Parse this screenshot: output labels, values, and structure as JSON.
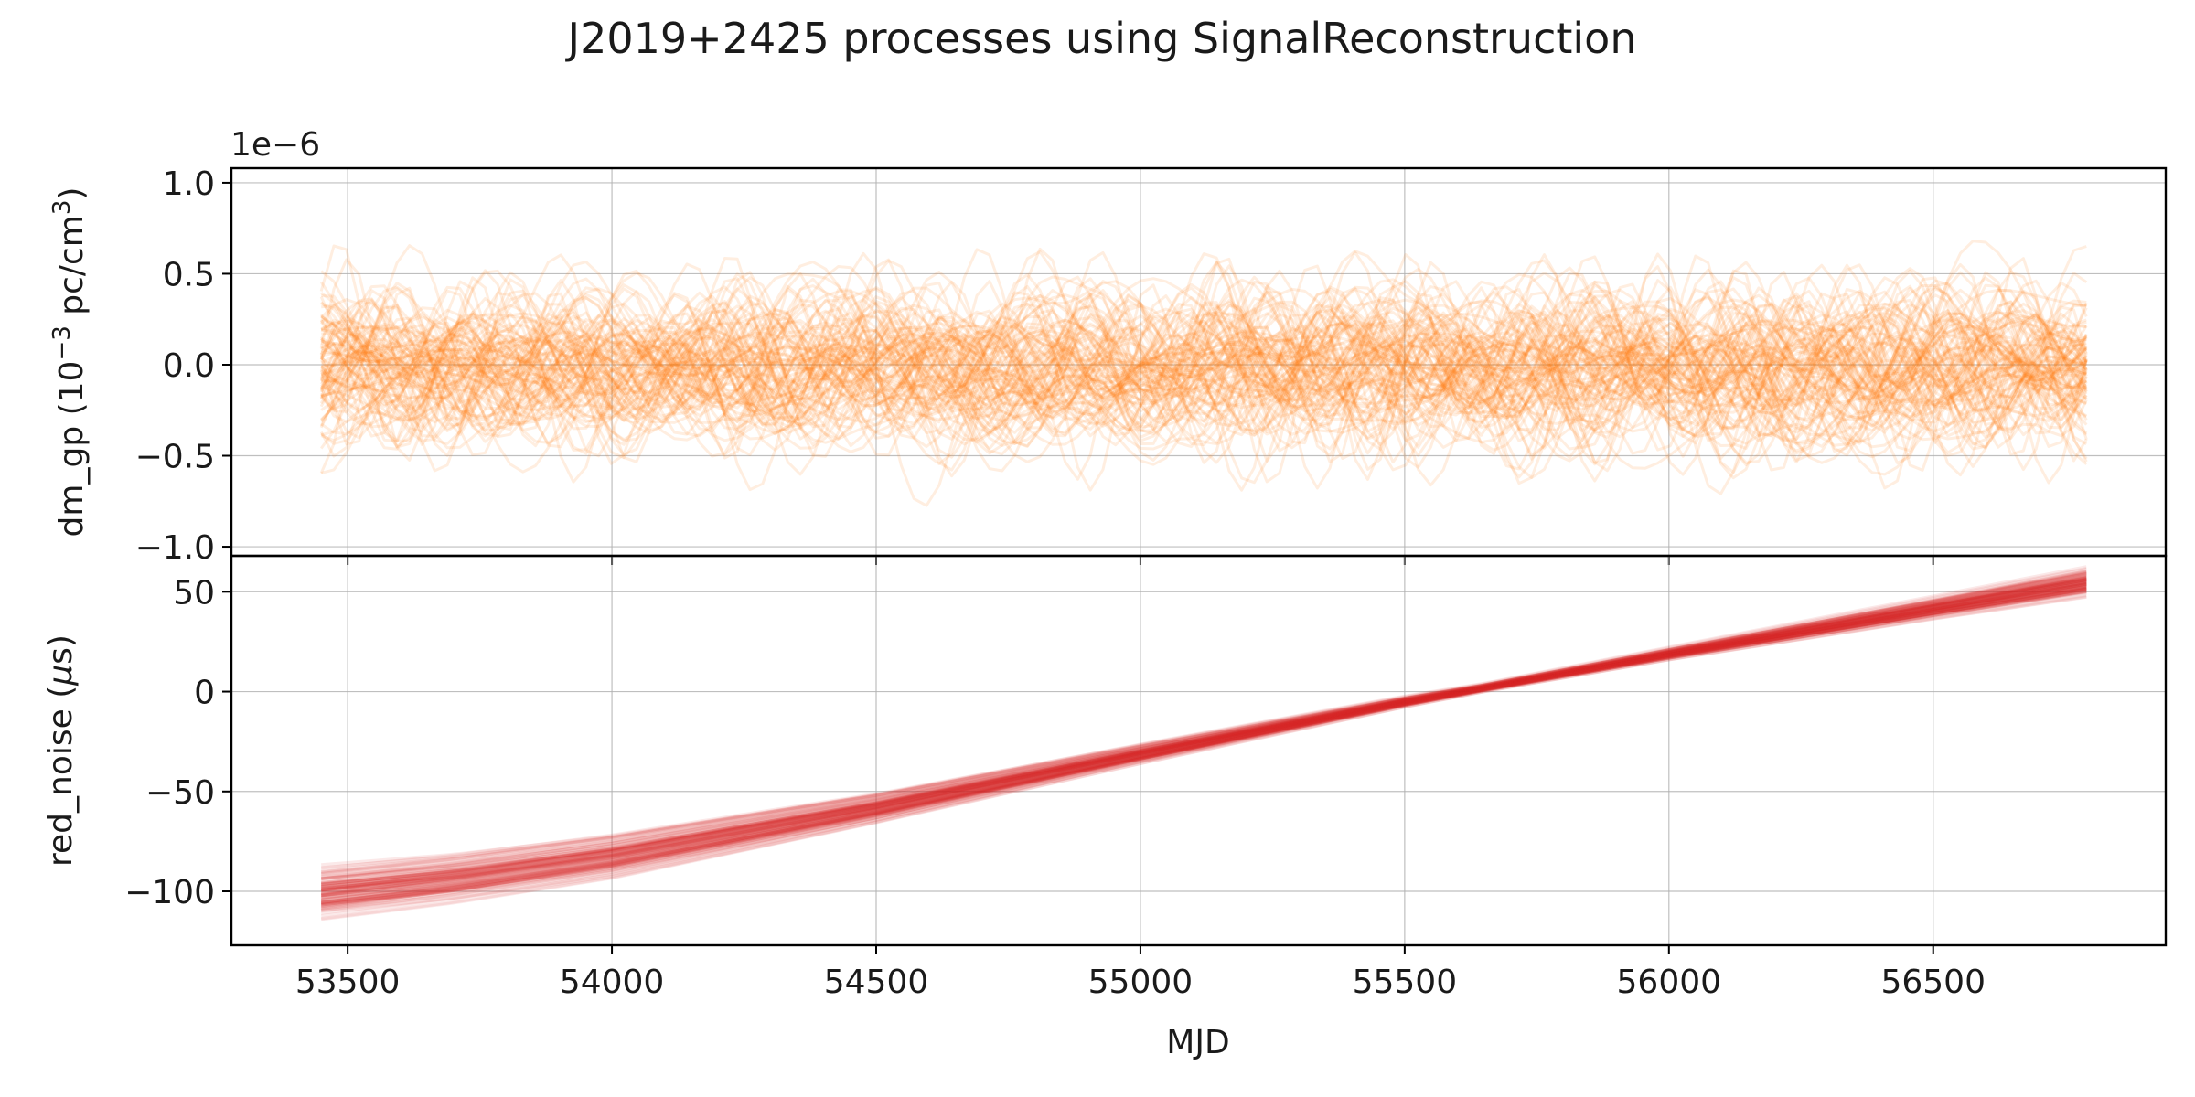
{
  "chart_data": {
    "type": "line",
    "title": "J2019+2425 processes using SignalReconstruction",
    "xlabel": "MJD",
    "x_range": [
      53280,
      56940
    ],
    "x_ticks": [
      53500,
      54000,
      54500,
      55000,
      55500,
      56000,
      56500
    ],
    "x_tick_labels": [
      "53500",
      "54000",
      "54500",
      "55000",
      "55500",
      "56000",
      "56500"
    ],
    "x_data_range": [
      53450,
      56790
    ],
    "grid": true,
    "panels": [
      {
        "name": "dm_gp",
        "ylabel_main": "dm_gp (10",
        "ylabel_sup1": "−3",
        "ylabel_mid": " pc/cm",
        "ylabel_sup2": "3",
        "ylabel_end": ")",
        "offset_text": "1e−6",
        "ylim": [
          -1.05,
          1.08
        ],
        "y_ticks": [
          -1.0,
          -0.5,
          0.0,
          0.5,
          1.0
        ],
        "y_tick_labels": [
          "−1.0",
          "−0.5",
          "0.0",
          "0.5",
          "1.0"
        ],
        "color": "#ff7f0e",
        "realizations": 100,
        "envelope": [
          -0.95,
          0.98
        ],
        "alpha": 0.13
      },
      {
        "name": "red_noise",
        "ylabel_main": "red_noise (",
        "ylabel_mu": "μ",
        "ylabel_end": "s)",
        "ylim": [
          -127,
          68
        ],
        "y_ticks": [
          -100,
          -50,
          0,
          50
        ],
        "y_tick_labels": [
          "−100",
          "−50",
          "0",
          "50"
        ],
        "color": "#d62728",
        "realizations": 100,
        "mean_curve": {
          "x": [
            53450,
            53700,
            54000,
            54500,
            55000,
            55500,
            55650,
            56000,
            56500,
            56790
          ],
          "y": [
            -100,
            -93,
            -82,
            -58,
            -31,
            -5,
            2,
            19,
            42,
            55
          ]
        },
        "spread": {
          "x": [
            53450,
            54000,
            54500,
            55000,
            55650,
            56000,
            56500,
            56790
          ],
          "sd": [
            5.5,
            4.5,
            3.0,
            2.0,
            0.8,
            1.2,
            2.2,
            3.0
          ]
        },
        "alpha": 0.1
      }
    ]
  }
}
